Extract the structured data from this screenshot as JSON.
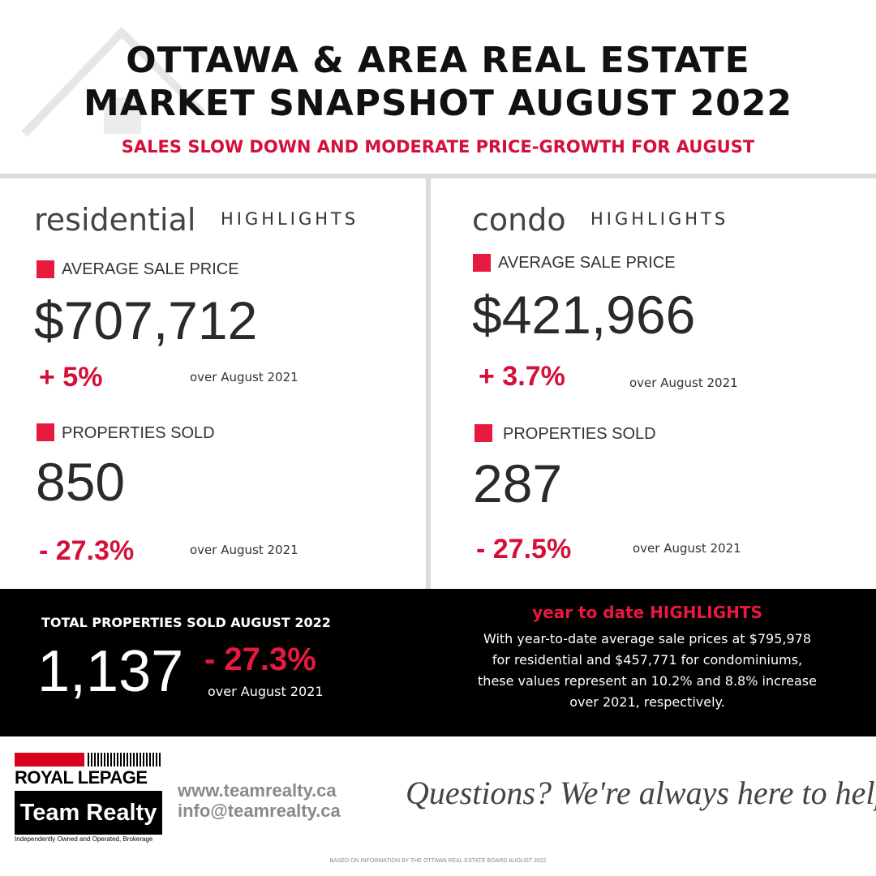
{
  "header": {
    "title_lines": [
      "OTTAWA & AREA REAL ESTATE",
      "MARKET SNAPSHOT AUGUST 2022"
    ],
    "subtitle": "SALES SLOW DOWN AND MODERATE PRICE-GROWTH FOR AUGUST"
  },
  "panels": [
    {
      "name": "residential",
      "suffix": "HIGHLIGHTS",
      "stats": [
        {
          "label": "AVERAGE SALE PRICE",
          "value": "$707,712",
          "change": "+ 5%",
          "comparison": "over August 2021"
        },
        {
          "label": "PROPERTIES SOLD",
          "value": "850",
          "change": "- 27.3%",
          "comparison": "over August 2021"
        }
      ]
    },
    {
      "name": "condo",
      "suffix": "HIGHLIGHTS",
      "stats": [
        {
          "label": "AVERAGE SALE PRICE",
          "value": "$421,966",
          "change": "+ 3.7%",
          "comparison": "over August 2021"
        },
        {
          "label": "PROPERTIES SOLD",
          "value": "287",
          "change": "- 27.5%",
          "comparison": "over August 2021"
        }
      ]
    }
  ],
  "total": {
    "label": "TOTAL PROPERTIES SOLD AUGUST 2022",
    "value": "1,137",
    "change": "- 27.3%",
    "comparison": "over August 2021"
  },
  "ytd": {
    "title": "year to date HIGHLIGHTS",
    "lines": [
      "With year-to-date average sale prices at $795,978",
      "for residential and $457,771 for condominiums,",
      "these values represent an 10.2% and 8.8% increase",
      "over 2021, respectively."
    ]
  },
  "footer": {
    "logo": {
      "brand": "ROYAL LEPAGE",
      "team": "Team Realty",
      "tagline": "Independently Owned and Operated, Brokerage"
    },
    "website": "www.teamrealty.ca",
    "email": "info@teamrealty.ca",
    "message": "Questions? We're always here to help",
    "source": "BASED ON INFORMATION BY THE OTTAWA REAL ESTATE BOARD AUGUST 2022"
  }
}
